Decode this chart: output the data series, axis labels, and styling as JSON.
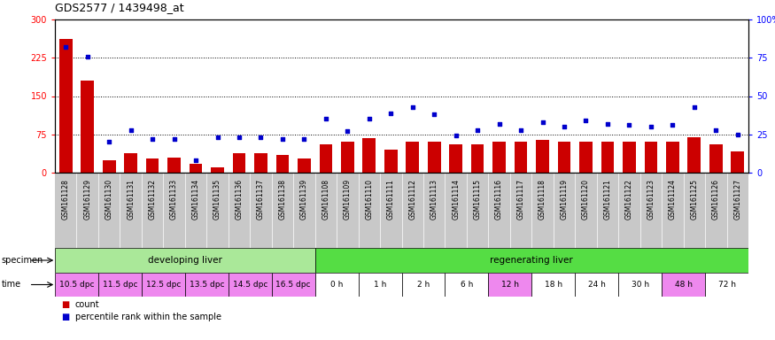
{
  "title": "GDS2577 / 1439498_at",
  "samples": [
    "GSM161128",
    "GSM161129",
    "GSM161130",
    "GSM161131",
    "GSM161132",
    "GSM161133",
    "GSM161134",
    "GSM161135",
    "GSM161136",
    "GSM161137",
    "GSM161138",
    "GSM161139",
    "GSM161108",
    "GSM161109",
    "GSM161110",
    "GSM161111",
    "GSM161112",
    "GSM161113",
    "GSM161114",
    "GSM161115",
    "GSM161116",
    "GSM161117",
    "GSM161118",
    "GSM161119",
    "GSM161120",
    "GSM161121",
    "GSM161122",
    "GSM161123",
    "GSM161124",
    "GSM161125",
    "GSM161126",
    "GSM161127"
  ],
  "counts": [
    262,
    180,
    25,
    38,
    28,
    30,
    17,
    10,
    38,
    38,
    35,
    28,
    55,
    60,
    68,
    45,
    60,
    60,
    55,
    55,
    60,
    60,
    65,
    60,
    60,
    60,
    60,
    60,
    60,
    70,
    55,
    42
  ],
  "percentiles": [
    82,
    76,
    20,
    28,
    22,
    22,
    8,
    23,
    23,
    23,
    22,
    22,
    35,
    27,
    35,
    39,
    43,
    38,
    24,
    28,
    32,
    28,
    33,
    30,
    34,
    32,
    31,
    30,
    31,
    43,
    28,
    25
  ],
  "bar_color": "#cc0000",
  "dot_color": "#0000cc",
  "plot_bg": "#ffffff",
  "tick_area_bg": "#c8c8c8",
  "ylim_left": [
    0,
    300
  ],
  "ylim_right": [
    0,
    100
  ],
  "yticks_left": [
    0,
    75,
    150,
    225,
    300
  ],
  "yticks_right": [
    0,
    25,
    50,
    75,
    100
  ],
  "ytick_labels_right": [
    "0",
    "25",
    "50",
    "75",
    "100%"
  ],
  "grid_lines": [
    75,
    150,
    225
  ],
  "specimen_groups": [
    {
      "label": "developing liver",
      "start": 0,
      "end": 12,
      "color": "#aae899"
    },
    {
      "label": "regenerating liver",
      "start": 12,
      "end": 32,
      "color": "#55dd44"
    }
  ],
  "time_groups": [
    {
      "label": "10.5 dpc",
      "start": 0,
      "end": 2,
      "color": "#ee88ee"
    },
    {
      "label": "11.5 dpc",
      "start": 2,
      "end": 4,
      "color": "#ee88ee"
    },
    {
      "label": "12.5 dpc",
      "start": 4,
      "end": 6,
      "color": "#ee88ee"
    },
    {
      "label": "13.5 dpc",
      "start": 6,
      "end": 8,
      "color": "#ee88ee"
    },
    {
      "label": "14.5 dpc",
      "start": 8,
      "end": 10,
      "color": "#ee88ee"
    },
    {
      "label": "16.5 dpc",
      "start": 10,
      "end": 12,
      "color": "#ee88ee"
    },
    {
      "label": "0 h",
      "start": 12,
      "end": 14,
      "color": "#ffffff"
    },
    {
      "label": "1 h",
      "start": 14,
      "end": 16,
      "color": "#ffffff"
    },
    {
      "label": "2 h",
      "start": 16,
      "end": 18,
      "color": "#ffffff"
    },
    {
      "label": "6 h",
      "start": 18,
      "end": 20,
      "color": "#ffffff"
    },
    {
      "label": "12 h",
      "start": 20,
      "end": 22,
      "color": "#ee88ee"
    },
    {
      "label": "18 h",
      "start": 22,
      "end": 24,
      "color": "#ffffff"
    },
    {
      "label": "24 h",
      "start": 24,
      "end": 26,
      "color": "#ffffff"
    },
    {
      "label": "30 h",
      "start": 26,
      "end": 28,
      "color": "#ffffff"
    },
    {
      "label": "48 h",
      "start": 28,
      "end": 30,
      "color": "#ee88ee"
    },
    {
      "label": "72 h",
      "start": 30,
      "end": 32,
      "color": "#ffffff"
    }
  ],
  "specimen_label": "specimen",
  "time_label": "time",
  "legend_items": [
    {
      "color": "#cc0000",
      "label": "count"
    },
    {
      "color": "#0000cc",
      "label": "percentile rank within the sample"
    }
  ]
}
